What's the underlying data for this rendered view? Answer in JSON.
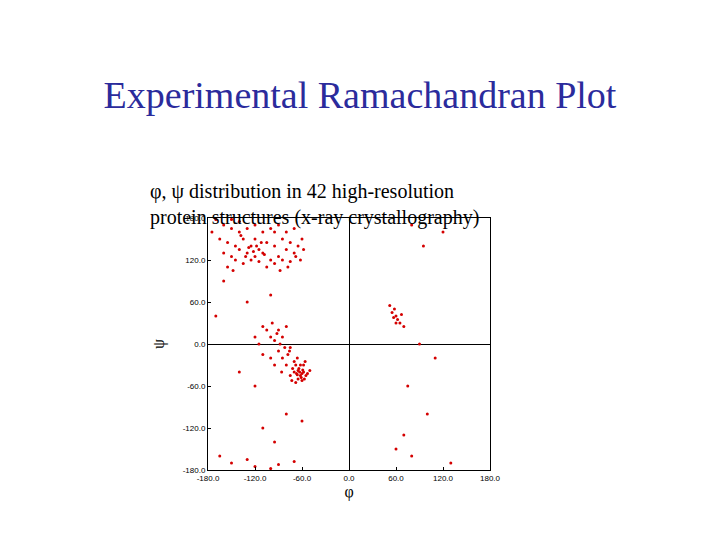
{
  "chart_data": {
    "type": "scatter",
    "title": "Experimental Ramachandran Plot",
    "subtitle": [
      "φ, ψ distribution in 42 high-resolution",
      "protein structures (x-ray crystallography)"
    ],
    "x_label": "φ",
    "y_label": "ψ",
    "color": "#d40000",
    "marker": "circle",
    "grid": false,
    "xlim": [
      -180,
      180
    ],
    "ylim": [
      -180,
      180
    ],
    "xticks": [
      {
        "value": -180,
        "label": "-180.0"
      },
      {
        "value": -120,
        "label": "-120.0"
      },
      {
        "value": -60,
        "label": "-60.0"
      },
      {
        "value": 0,
        "label": "0.0"
      },
      {
        "value": 60,
        "label": "60.0"
      },
      {
        "value": 120,
        "label": "120.0"
      },
      {
        "value": 180,
        "label": "180.0"
      }
    ],
    "yticks": [
      {
        "value": 180,
        "label": "180.0"
      },
      {
        "value": 120,
        "label": "120.0"
      },
      {
        "value": 60,
        "label": "60.0"
      },
      {
        "value": 0,
        "label": "0.0"
      },
      {
        "value": -60,
        "label": "-60.0"
      },
      {
        "value": -120,
        "label": "-120.0"
      },
      {
        "value": -180,
        "label": "-180.0"
      }
    ],
    "x": [
      -160,
      -150,
      -140,
      -130,
      -120,
      -110,
      -100,
      -90,
      -80,
      -70,
      -165,
      -155,
      -145,
      -135,
      -125,
      -115,
      -105,
      -95,
      -85,
      -75,
      -160,
      -150,
      -140,
      -130,
      -120,
      -110,
      -100,
      -90,
      -80,
      -70,
      -145,
      -135,
      -125,
      -115,
      -105,
      -95,
      -85,
      -75,
      -65,
      -60,
      -170,
      -140,
      -120,
      -118,
      -122,
      -128,
      -112,
      -132,
      -138,
      -108,
      -88,
      -78,
      -68,
      -155,
      -148,
      -95,
      -58,
      -62,
      -175,
      -150,
      -63,
      -60,
      -65,
      -62,
      -58,
      -67,
      -64,
      -61,
      -66,
      -59,
      -70,
      -55,
      -68,
      -57,
      -72,
      -62,
      -60,
      -65,
      -53,
      -75,
      -70,
      -66,
      -80,
      -85,
      -78,
      -90,
      -88,
      -82,
      -95,
      -100,
      -92,
      -85,
      -75,
      -105,
      -110,
      -98,
      -90,
      -80,
      -115,
      -120,
      -100,
      -95,
      -110,
      -58,
      -50,
      -56,
      -73,
      -68,
      -76,
      -86,
      55,
      60,
      62,
      58,
      65,
      70,
      52,
      60,
      67,
      57,
      -150,
      -120,
      -90,
      -70,
      -130,
      -100,
      -165,
      -110,
      -95,
      -80,
      -120,
      -140,
      -60,
      -130,
      -100,
      -160,
      -170,
      80,
      70,
      100,
      80,
      120,
      95,
      90,
      110,
      75,
      60,
      130
    ],
    "values": [
      170,
      165,
      160,
      165,
      170,
      160,
      165,
      170,
      160,
      165,
      150,
      145,
      140,
      150,
      140,
      135,
      145,
      140,
      150,
      145,
      130,
      125,
      135,
      130,
      125,
      130,
      120,
      125,
      135,
      130,
      120,
      115,
      120,
      118,
      110,
      115,
      120,
      118,
      140,
      150,
      178,
      175,
      150,
      140,
      132,
      138,
      145,
      125,
      155,
      128,
      105,
      110,
      125,
      110,
      105,
      160,
      135,
      120,
      160,
      178,
      -40,
      -42,
      -38,
      -45,
      -40,
      -42,
      -35,
      -48,
      -44,
      -37,
      -40,
      -45,
      -30,
      -50,
      -35,
      -30,
      -52,
      -50,
      -42,
      -45,
      -25,
      -20,
      -30,
      -20,
      -15,
      -10,
      0,
      -5,
      5,
      10,
      15,
      10,
      -5,
      20,
      25,
      30,
      20,
      25,
      0,
      10,
      -20,
      -30,
      -15,
      -30,
      -38,
      -25,
      -52,
      -55,
      -10,
      -40,
      45,
      40,
      35,
      50,
      30,
      25,
      55,
      30,
      42,
      38,
      -170,
      -175,
      -172,
      -168,
      -165,
      -178,
      -160,
      -120,
      -140,
      -100,
      -60,
      -40,
      -110,
      60,
      70,
      90,
      40,
      -160,
      -130,
      -100,
      170,
      160,
      140,
      0,
      -20,
      -60,
      -150,
      -170
    ]
  }
}
